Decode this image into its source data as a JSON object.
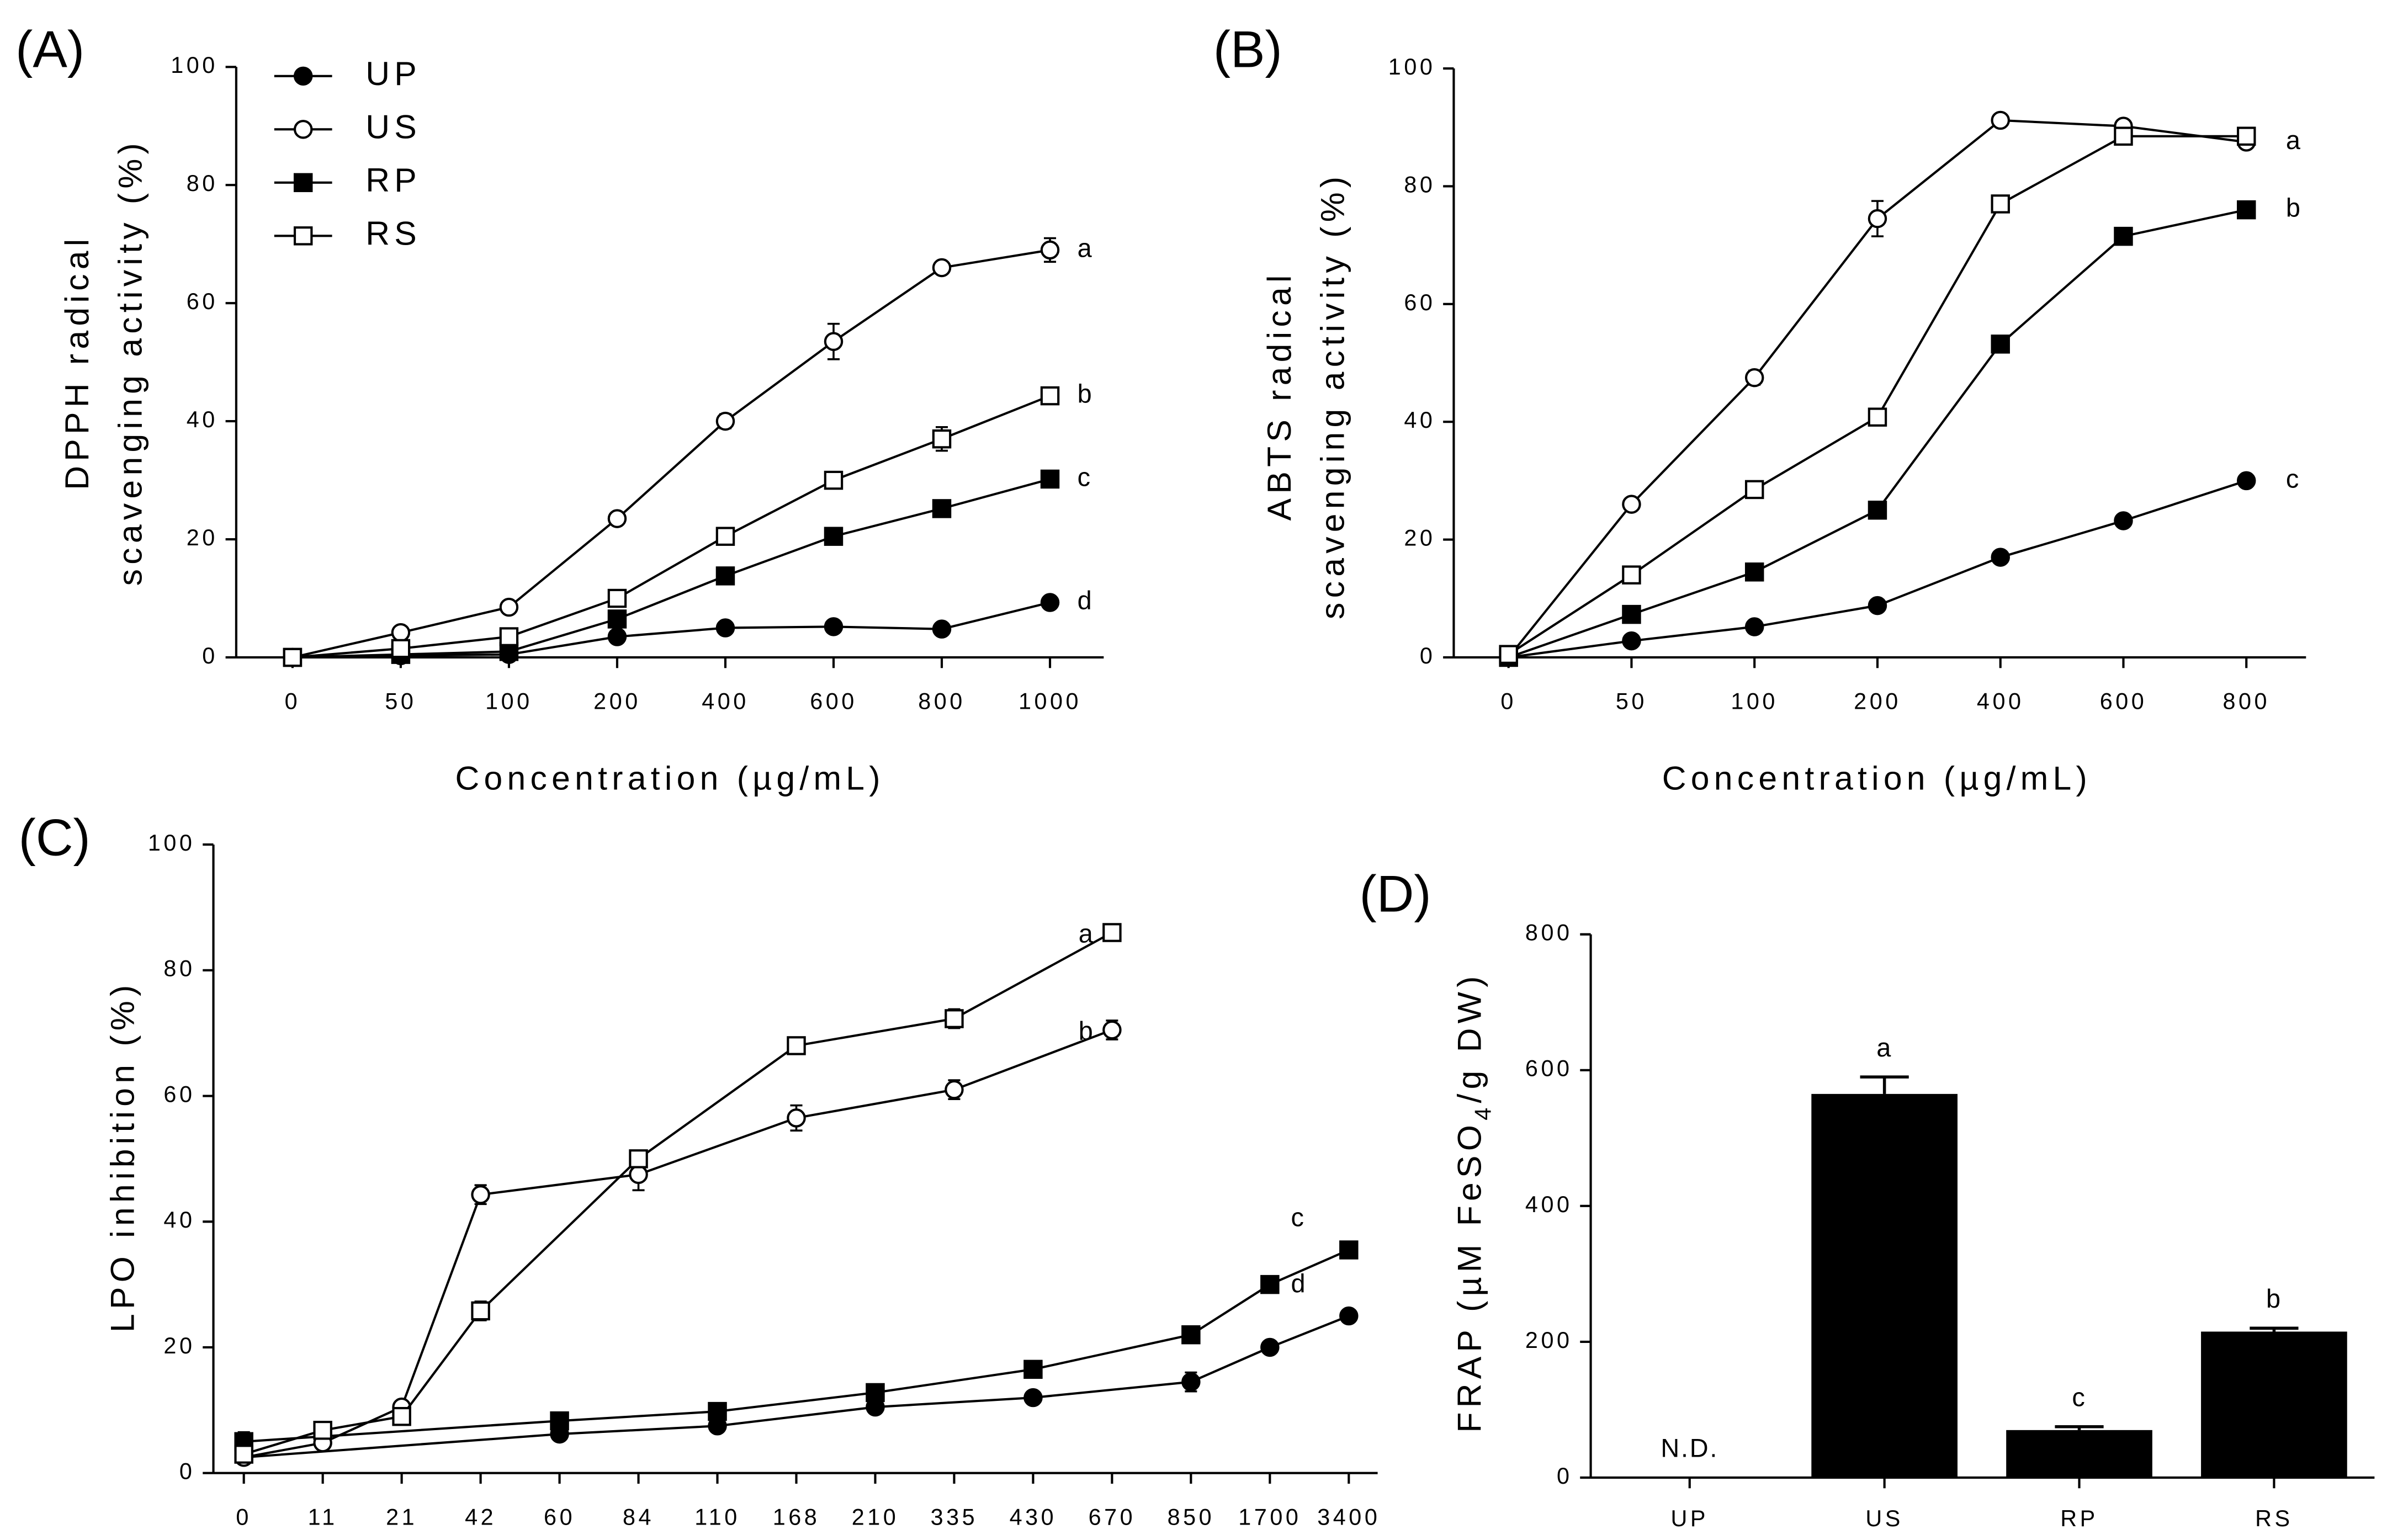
{
  "chart_data": [
    {
      "type": "line",
      "panel": "(A)",
      "ylabel": [
        "DPPH radical",
        "scavenging activity (%)"
      ],
      "xlabel": "Concentration (µg/mL)",
      "categories": [
        "0",
        "50",
        "100",
        "200",
        "400",
        "600",
        "800",
        "1000"
      ],
      "ylim": [
        0,
        100
      ],
      "yticks": [
        0,
        20,
        40,
        60,
        80,
        100
      ],
      "legend": "upper left",
      "series": [
        {
          "name": "UP",
          "marker": "circle",
          "filled": true,
          "color": "#000000",
          "letter": "d",
          "values": [
            0,
            0.3,
            0.5,
            3.5,
            5,
            5.2,
            4.8,
            9.3
          ],
          "errors": [
            0.3,
            0.3,
            0.3,
            0.5,
            0.5,
            0.5,
            0.5,
            0.6
          ]
        },
        {
          "name": "US",
          "marker": "circle",
          "filled": false,
          "color": "#000000",
          "letter": "a",
          "values": [
            0,
            4.2,
            8.5,
            23.5,
            40,
            53.5,
            66,
            69
          ],
          "errors": [
            0.3,
            0.8,
            0.8,
            0.8,
            1.2,
            3,
            1,
            2
          ]
        },
        {
          "name": "RP",
          "marker": "square",
          "filled": true,
          "color": "#000000",
          "letter": "c",
          "values": [
            0,
            0.5,
            1,
            6.5,
            13.8,
            20.5,
            25.2,
            30.2
          ],
          "errors": [
            0.3,
            0.3,
            0.3,
            0.5,
            0.6,
            0.6,
            0.6,
            0.6
          ]
        },
        {
          "name": "RS",
          "marker": "square",
          "filled": false,
          "color": "#000000",
          "letter": "b",
          "values": [
            0,
            1.5,
            3.5,
            10,
            20.5,
            30,
            37,
            44.3
          ],
          "errors": [
            0.3,
            0.5,
            0.8,
            1,
            1,
            1,
            2,
            1
          ]
        }
      ]
    },
    {
      "type": "line",
      "panel": "(B)",
      "ylabel": [
        "ABTS radical",
        "scavenging activity (%)"
      ],
      "xlabel": "Concentration (µg/mL)",
      "categories": [
        "0",
        "50",
        "100",
        "200",
        "400",
        "600",
        "800"
      ],
      "ylim": [
        0,
        100
      ],
      "yticks": [
        0,
        20,
        40,
        60,
        80,
        100
      ],
      "series": [
        {
          "marker": "circle",
          "filled": true,
          "color": "#000000",
          "letter": "c",
          "values": [
            0,
            2.8,
            5.2,
            8.8,
            17,
            23.2,
            30
          ],
          "errors": [
            0.3,
            0.3,
            0.4,
            0.5,
            0.5,
            0.5,
            0.5
          ]
        },
        {
          "marker": "circle",
          "filled": false,
          "color": "#000000",
          "letter": "a",
          "values": [
            0,
            26,
            47.5,
            74.5,
            91.2,
            90.2,
            87.5
          ],
          "errors": [
            0.3,
            1,
            1.2,
            3,
            0.6,
            1,
            0.8
          ]
        },
        {
          "marker": "square",
          "filled": true,
          "color": "#000000",
          "letter": "b",
          "values": [
            0,
            7.3,
            14.5,
            25,
            53.2,
            71.5,
            76
          ],
          "errors": [
            0.3,
            0.5,
            0.5,
            0.5,
            0.6,
            0.6,
            0.6
          ]
        },
        {
          "marker": "square",
          "filled": false,
          "color": "#000000",
          "values": [
            0.5,
            14,
            28.5,
            40.8,
            77,
            88.5,
            88.5
          ],
          "errors": [
            0.3,
            1,
            1.2,
            1.2,
            1,
            1,
            1
          ]
        }
      ]
    },
    {
      "type": "line",
      "panel": "(C)",
      "ylabel": [
        "LPO inhibition (%)"
      ],
      "categories": [
        "0",
        "11",
        "21",
        "42",
        "60",
        "84",
        "110",
        "168",
        "210",
        "335",
        "430",
        "670",
        "850",
        "1700",
        "3400"
      ],
      "ylim": [
        0,
        100
      ],
      "yticks": [
        0,
        20,
        40,
        60,
        80,
        100
      ],
      "series": [
        {
          "marker": "circle",
          "filled": true,
          "color": "#000000",
          "letter": "d",
          "x": [
            "0",
            "60",
            "110",
            "210",
            "430",
            "850",
            "1700",
            "3400"
          ],
          "values": [
            2.5,
            6.2,
            7.5,
            10.5,
            12,
            14.5,
            20,
            25
          ],
          "errors": [
            0.5,
            0.6,
            0.8,
            1,
            1,
            1.5,
            0.8,
            0.6
          ]
        },
        {
          "marker": "circle",
          "filled": false,
          "color": "#000000",
          "letter": "b",
          "x": [
            "0",
            "11",
            "21",
            "42",
            "84",
            "168",
            "335",
            "670"
          ],
          "values": [
            2.5,
            4.8,
            10.5,
            44.3,
            47.5,
            56.5,
            61,
            70.5
          ],
          "errors": [
            0.5,
            0.8,
            0.8,
            1.5,
            2.5,
            2,
            1.5,
            1.5
          ]
        },
        {
          "marker": "square",
          "filled": true,
          "color": "#000000",
          "letter": "c",
          "x": [
            "0",
            "60",
            "110",
            "210",
            "430",
            "850",
            "1700",
            "3400"
          ],
          "values": [
            5,
            8.3,
            9.8,
            12.8,
            16.5,
            22,
            30,
            35.5
          ],
          "errors": [
            1.5,
            1,
            1,
            1,
            0.8,
            0.8,
            0.8,
            0.8
          ]
        },
        {
          "marker": "square",
          "filled": false,
          "color": "#000000",
          "letter": "a",
          "x": [
            "0",
            "11",
            "21",
            "42",
            "84",
            "168",
            "335",
            "670"
          ],
          "values": [
            3,
            6.8,
            9,
            25.8,
            50,
            68,
            72.3,
            86
          ],
          "errors": [
            0.8,
            1,
            1,
            1.5,
            1,
            1,
            1.5,
            1.2
          ]
        }
      ]
    },
    {
      "type": "bar",
      "panel": "(D)",
      "ylabel": [
        "FRAP (µM FeSO",
        "4",
        "/g DW)"
      ],
      "categories": [
        "UP",
        "US",
        "RP",
        "RS"
      ],
      "values": [
        null,
        565,
        70,
        215
      ],
      "errors": [
        null,
        25,
        5,
        5
      ],
      "annotations": [
        "N.D.",
        "a",
        "c",
        "b"
      ],
      "color": "#000000",
      "ylim": [
        0,
        800
      ],
      "yticks": [
        0,
        200,
        400,
        600,
        800
      ]
    }
  ]
}
